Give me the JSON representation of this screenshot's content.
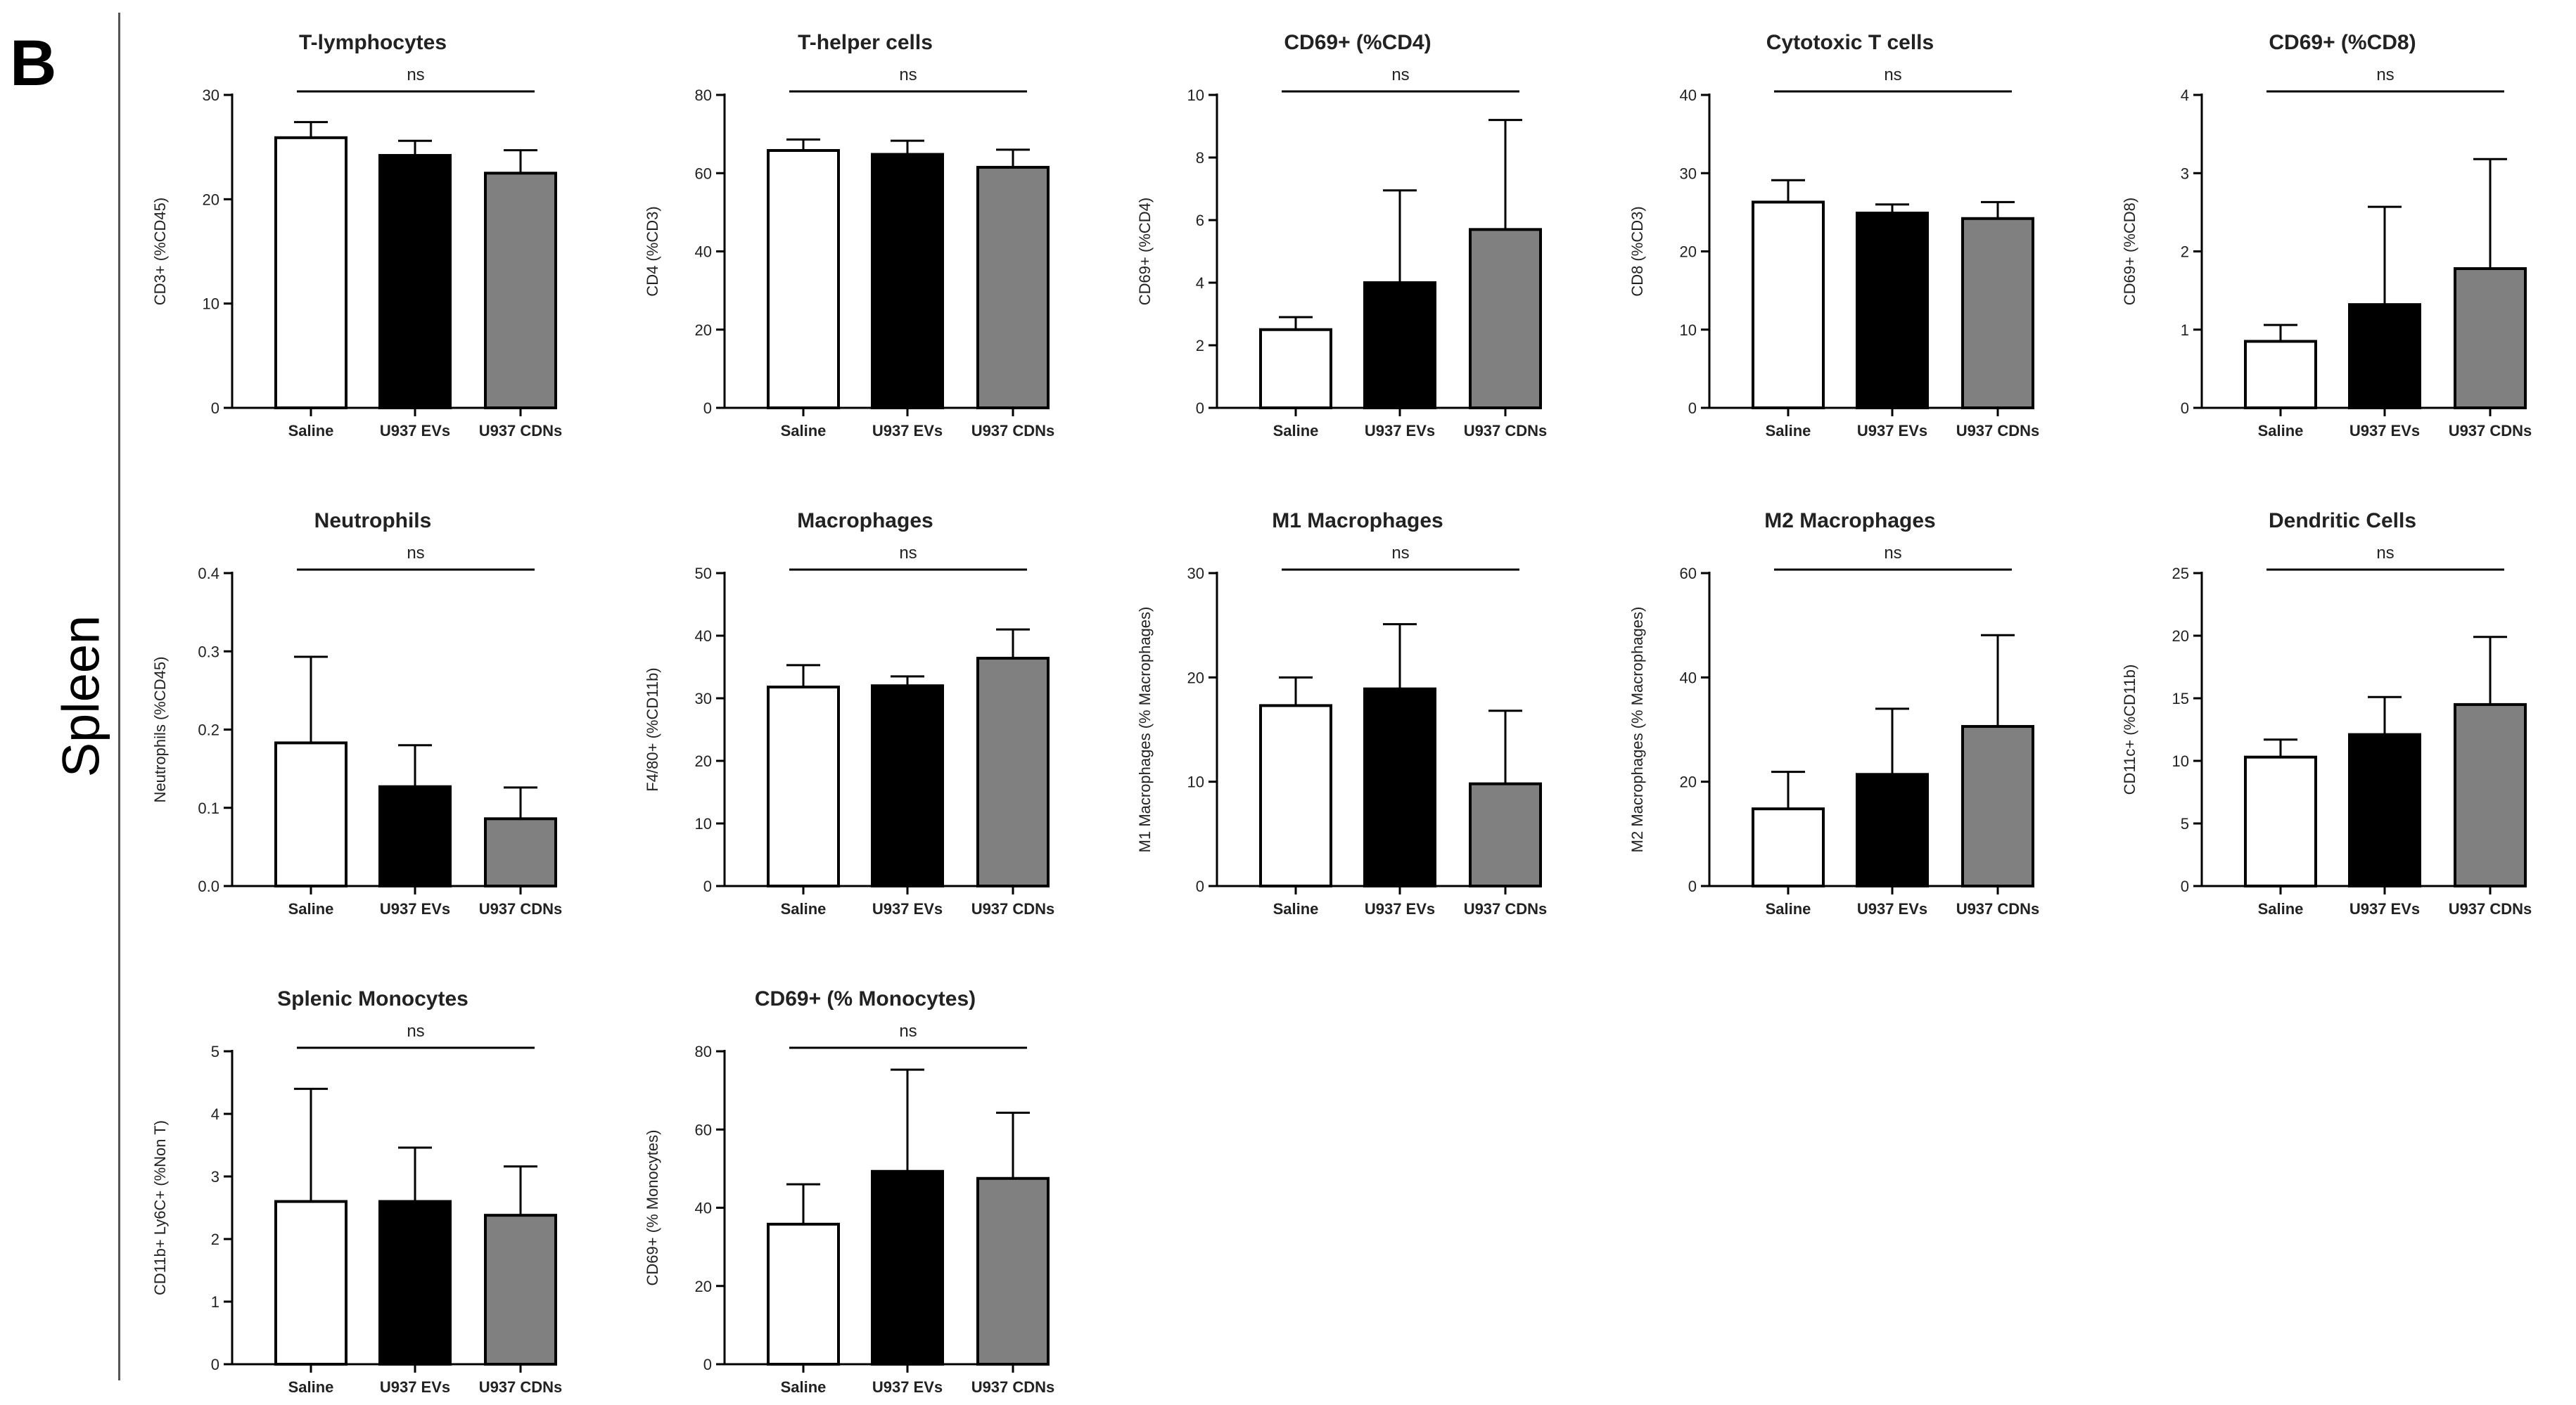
{
  "panel_letter": "B",
  "tissue_label": "Spleen",
  "colors": {
    "saline": "#ffffff",
    "evs": "#000000",
    "cdns": "#808080",
    "axis": "#000000"
  },
  "chart_data": [
    {
      "type": "bar",
      "title": "T-lymphocytes",
      "ylabel": "CD3+ (%CD45)",
      "ylim": [
        0,
        30
      ],
      "yticks": [
        0,
        10,
        20,
        30
      ],
      "categories": [
        "Saline",
        "U937 EVs",
        "U937 CDNs"
      ],
      "values": [
        25.9,
        24.2,
        22.5
      ],
      "errors": [
        1.5,
        1.4,
        2.2
      ],
      "annotation": "ns"
    },
    {
      "type": "bar",
      "title": "T-helper cells",
      "ylabel": "CD4 (%CD3)",
      "ylim": [
        0,
        80
      ],
      "yticks": [
        0,
        20,
        40,
        60,
        80
      ],
      "categories": [
        "Saline",
        "U937 EVs",
        "U937 CDNs"
      ],
      "values": [
        65.8,
        64.8,
        61.5
      ],
      "errors": [
        2.8,
        3.5,
        4.5
      ],
      "annotation": "ns"
    },
    {
      "type": "bar",
      "title": "CD69+ (%CD4)",
      "ylabel": "CD69+ (%CD4)",
      "ylim": [
        0,
        10
      ],
      "yticks": [
        0,
        2,
        4,
        6,
        8,
        10
      ],
      "categories": [
        "Saline",
        "U937 EVs",
        "U937 CDNs"
      ],
      "values": [
        2.5,
        4.0,
        5.7
      ],
      "errors": [
        0.4,
        2.95,
        3.5
      ],
      "annotation": "ns"
    },
    {
      "type": "bar",
      "title": "Cytotoxic T cells",
      "ylabel": "CD8 (%CD3)",
      "ylim": [
        0,
        40
      ],
      "yticks": [
        0,
        10,
        20,
        30,
        40
      ],
      "categories": [
        "Saline",
        "U937 EVs",
        "U937 CDNs"
      ],
      "values": [
        26.3,
        24.9,
        24.2
      ],
      "errors": [
        2.8,
        1.1,
        2.1
      ],
      "annotation": "ns"
    },
    {
      "type": "bar",
      "title": "CD69+ (%CD8)",
      "ylabel": "CD69+ (%CD8)",
      "ylim": [
        0,
        4
      ],
      "yticks": [
        0,
        1,
        2,
        3,
        4
      ],
      "categories": [
        "Saline",
        "U937 EVs",
        "U937 CDNs"
      ],
      "values": [
        0.85,
        1.32,
        1.78
      ],
      "errors": [
        0.21,
        1.25,
        1.4
      ],
      "annotation": "ns"
    },
    {
      "type": "bar",
      "title": "Neutrophils",
      "ylabel": "Neutrophils (%CD45)",
      "ylim": [
        0,
        0.4
      ],
      "yticks": [
        0,
        0.1,
        0.2,
        0.3,
        0.4
      ],
      "categories": [
        "Saline",
        "U937 EVs",
        "U937 CDNs"
      ],
      "values": [
        0.183,
        0.127,
        0.086
      ],
      "errors": [
        0.11,
        0.053,
        0.04
      ],
      "annotation": "ns"
    },
    {
      "type": "bar",
      "title": "Macrophages",
      "ylabel": "F4/80+ (%CD11b)",
      "ylim": [
        0,
        50
      ],
      "yticks": [
        0,
        10,
        20,
        30,
        40,
        50
      ],
      "categories": [
        "Saline",
        "U937 EVs",
        "U937 CDNs"
      ],
      "values": [
        31.8,
        32.0,
        36.4
      ],
      "errors": [
        3.5,
        1.5,
        4.6
      ],
      "annotation": "ns"
    },
    {
      "type": "bar",
      "title": "M1 Macrophages",
      "ylabel": "M1 Macrophages (% Macrophages)",
      "ylim": [
        0,
        30
      ],
      "yticks": [
        0,
        10,
        20,
        30
      ],
      "categories": [
        "Saline",
        "U937 EVs",
        "U937 CDNs"
      ],
      "values": [
        17.3,
        18.9,
        9.8
      ],
      "errors": [
        2.7,
        6.2,
        7.0
      ],
      "annotation": "ns"
    },
    {
      "type": "bar",
      "title": "M2 Macrophages",
      "ylabel": "M2 Macrophages (% Macrophages)",
      "ylim": [
        0,
        60
      ],
      "yticks": [
        0,
        20,
        40,
        60
      ],
      "categories": [
        "Saline",
        "U937 EVs",
        "U937 CDNs"
      ],
      "values": [
        14.8,
        21.4,
        30.6
      ],
      "errors": [
        7.1,
        12.6,
        17.5
      ],
      "annotation": "ns"
    },
    {
      "type": "bar",
      "title": "Dendritic Cells",
      "ylabel": "CD11c+ (%CD11b)",
      "ylim": [
        0,
        25
      ],
      "yticks": [
        0,
        5,
        10,
        15,
        20,
        25
      ],
      "categories": [
        "Saline",
        "U937 EVs",
        "U937 CDNs"
      ],
      "values": [
        10.3,
        12.1,
        14.5
      ],
      "errors": [
        1.4,
        3.0,
        5.4
      ],
      "annotation": "ns"
    },
    {
      "type": "bar",
      "title": "Splenic Monocytes",
      "ylabel": "CD11b+ Ly6C+ (%Non T)",
      "ylim": [
        0,
        5
      ],
      "yticks": [
        0,
        1,
        2,
        3,
        4,
        5
      ],
      "categories": [
        "Saline",
        "U937 EVs",
        "U937 CDNs"
      ],
      "values": [
        2.6,
        2.6,
        2.38
      ],
      "errors": [
        1.8,
        0.86,
        0.78
      ],
      "annotation": "ns"
    },
    {
      "type": "bar",
      "title": "CD69+ (% Monocytes)",
      "ylabel": "CD69+ (% Monocytes)",
      "ylim": [
        0,
        80
      ],
      "yticks": [
        0,
        20,
        40,
        60,
        80
      ],
      "categories": [
        "Saline",
        "U937 EVs",
        "U937 CDNs"
      ],
      "values": [
        35.8,
        49.3,
        47.5
      ],
      "errors": [
        10.2,
        26.0,
        16.8
      ],
      "annotation": "ns"
    }
  ]
}
